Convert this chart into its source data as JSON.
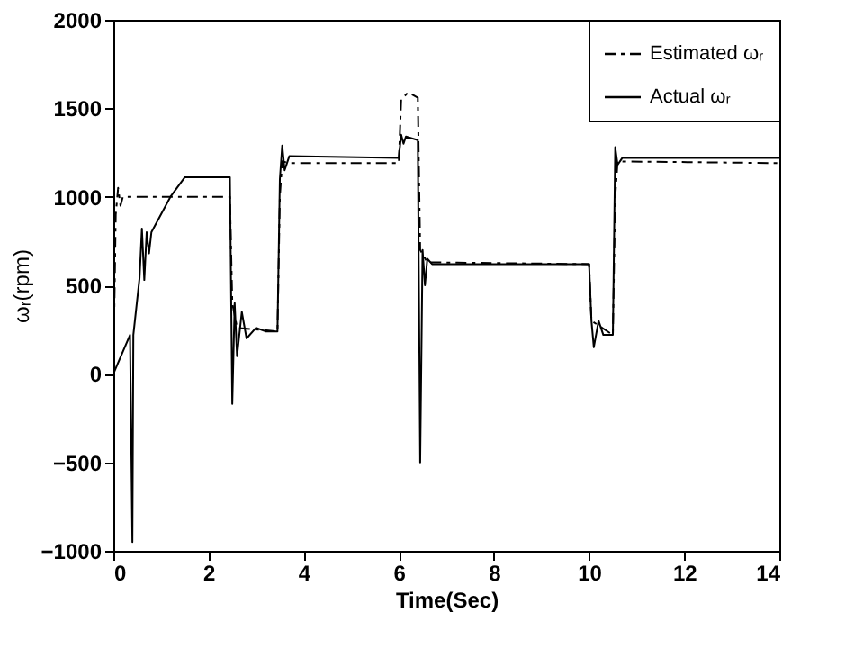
{
  "chart_data": {
    "type": "line",
    "xlabel": "Time(Sec)",
    "ylabel": "ωᵣ(rpm)",
    "xlim": [
      0,
      14
    ],
    "ylim": [
      -1000,
      2000
    ],
    "xticks": [
      0,
      2,
      4,
      6,
      8,
      10,
      12,
      14
    ],
    "yticks": [
      -1000,
      -500,
      0,
      500,
      1000,
      1500,
      2000
    ],
    "grid": false,
    "legend": "top right",
    "marker": "none",
    "series": [
      {
        "name": "Estimated ωᵣ",
        "color": "#000000",
        "line_style": "dashed",
        "x": [
          0,
          0.05,
          0.1,
          0.15,
          0.2,
          2.45,
          2.5,
          2.6,
          3.45,
          3.5,
          3.55,
          3.7,
          6.0,
          6.05,
          6.2,
          6.4,
          6.45,
          6.6,
          10.0,
          10.05,
          10.5,
          10.55,
          10.6,
          14
        ],
        "values": [
          0,
          900,
          1050,
          950,
          1000,
          1000,
          400,
          260,
          240,
          1000,
          1200,
          1190,
          1190,
          1550,
          1590,
          1560,
          700,
          630,
          620,
          300,
          220,
          1000,
          1200,
          1190
        ]
      },
      {
        "name": "Actual ωᵣ",
        "color": "#000000",
        "line_style": "solid",
        "x": [
          0,
          0.35,
          0.4,
          0.42,
          0.55,
          0.6,
          0.65,
          0.7,
          0.75,
          0.8,
          1.2,
          1.5,
          2.45,
          2.5,
          2.55,
          2.6,
          2.7,
          2.8,
          3.0,
          3.2,
          3.45,
          3.5,
          3.55,
          3.6,
          3.7,
          6.0,
          6.05,
          6.1,
          6.15,
          6.4,
          6.45,
          6.5,
          6.55,
          6.6,
          6.7,
          10.0,
          10.05,
          10.1,
          10.2,
          10.3,
          10.5,
          10.55,
          10.6,
          10.7,
          14
        ],
        "values": [
          0,
          220,
          -950,
          220,
          540,
          820,
          530,
          800,
          680,
          800,
          1000,
          1110,
          1110,
          -170,
          400,
          100,
          350,
          200,
          260,
          240,
          240,
          1100,
          1290,
          1150,
          1230,
          1220,
          1350,
          1300,
          1340,
          1320,
          -500,
          700,
          500,
          650,
          620,
          620,
          300,
          150,
          300,
          220,
          220,
          1280,
          1180,
          1220,
          1220
        ]
      }
    ]
  }
}
